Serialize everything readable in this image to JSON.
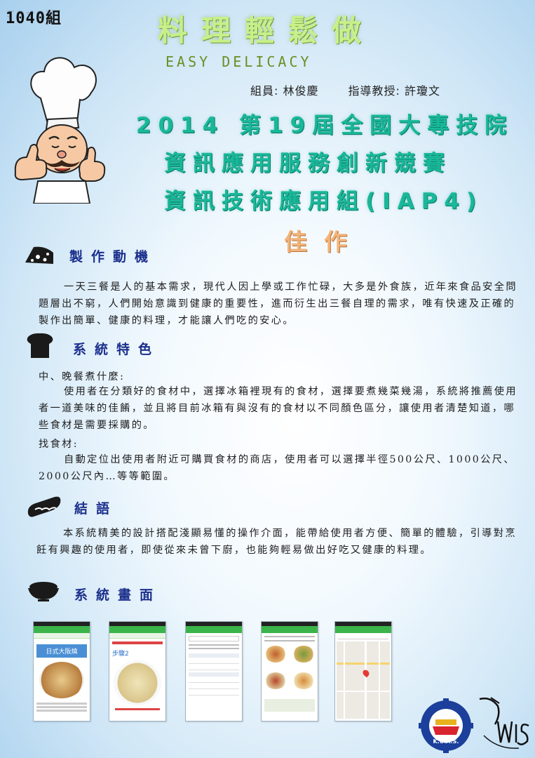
{
  "header": {
    "group_id": "1040組",
    "title_cn": "料理輕鬆做",
    "title_en": "EASY DELICACY",
    "member_label": "組員: 林俊慶",
    "advisor_label": "指導教授: 許瓊文"
  },
  "competition": {
    "line1": "2014 第19屆全國大專技院",
    "line2": "資訊應用服務創新競賽",
    "line3": "資訊技術應用組(IAP4)",
    "award": "佳作"
  },
  "sections": {
    "motivation": {
      "title": "製作動機",
      "body": "一天三餐是人的基本需求，現代人因上學或工作忙碌，大多是外食族，近年來食品安全問題層出不窮，人們開始意識到健康的重要性，進而衍生出三餐自理的需求，唯有快速及正確的製作出簡單、健康的料理，才能讓人們吃的安心。"
    },
    "features": {
      "title": "系統特色",
      "item1_label": "中、晚餐煮什麼:",
      "item1_body": "使用者在分類好的食材中，選擇冰箱裡現有的食材，選擇要煮幾菜幾湯，系統將推薦使用者一道美味的佳餚，並且將目前冰箱有與沒有的食材以不同顏色區分，讓使用者清楚知道，哪些食材是需要採購的。",
      "item2_label": "找食材:",
      "item2_body": "自動定位出使用者附近可購買食材的商店，使用者可以選擇半徑500公尺、1000公尺、2000公尺內…等等範圍。"
    },
    "conclusion": {
      "title": "結語",
      "body": "本系統精美的設計搭配淺顯易懂的操作介面，能帶給使用者方便、簡單的體驗，引導對烹飪有興趣的使用者，即使從來未曾下廚，也能夠輕易做出好吃又健康的料理。"
    },
    "screens": {
      "title": "系統畫面",
      "shot1_title": "日式大阪燒",
      "shot2_title": "步驟2"
    }
  },
  "logo": {
    "text": "K.U.A.S."
  },
  "colors": {
    "title_green": "#c8ef8a",
    "comp_teal": "#19b89a",
    "award_orange": "#f2b47a",
    "section_blue": "#1b2f8c",
    "app_green": "#3bb54a"
  },
  "icons": {
    "motivation": "cheese-icon",
    "features": "bread-icon",
    "conclusion": "hotdog-icon",
    "screens": "rice-bowl-icon"
  }
}
